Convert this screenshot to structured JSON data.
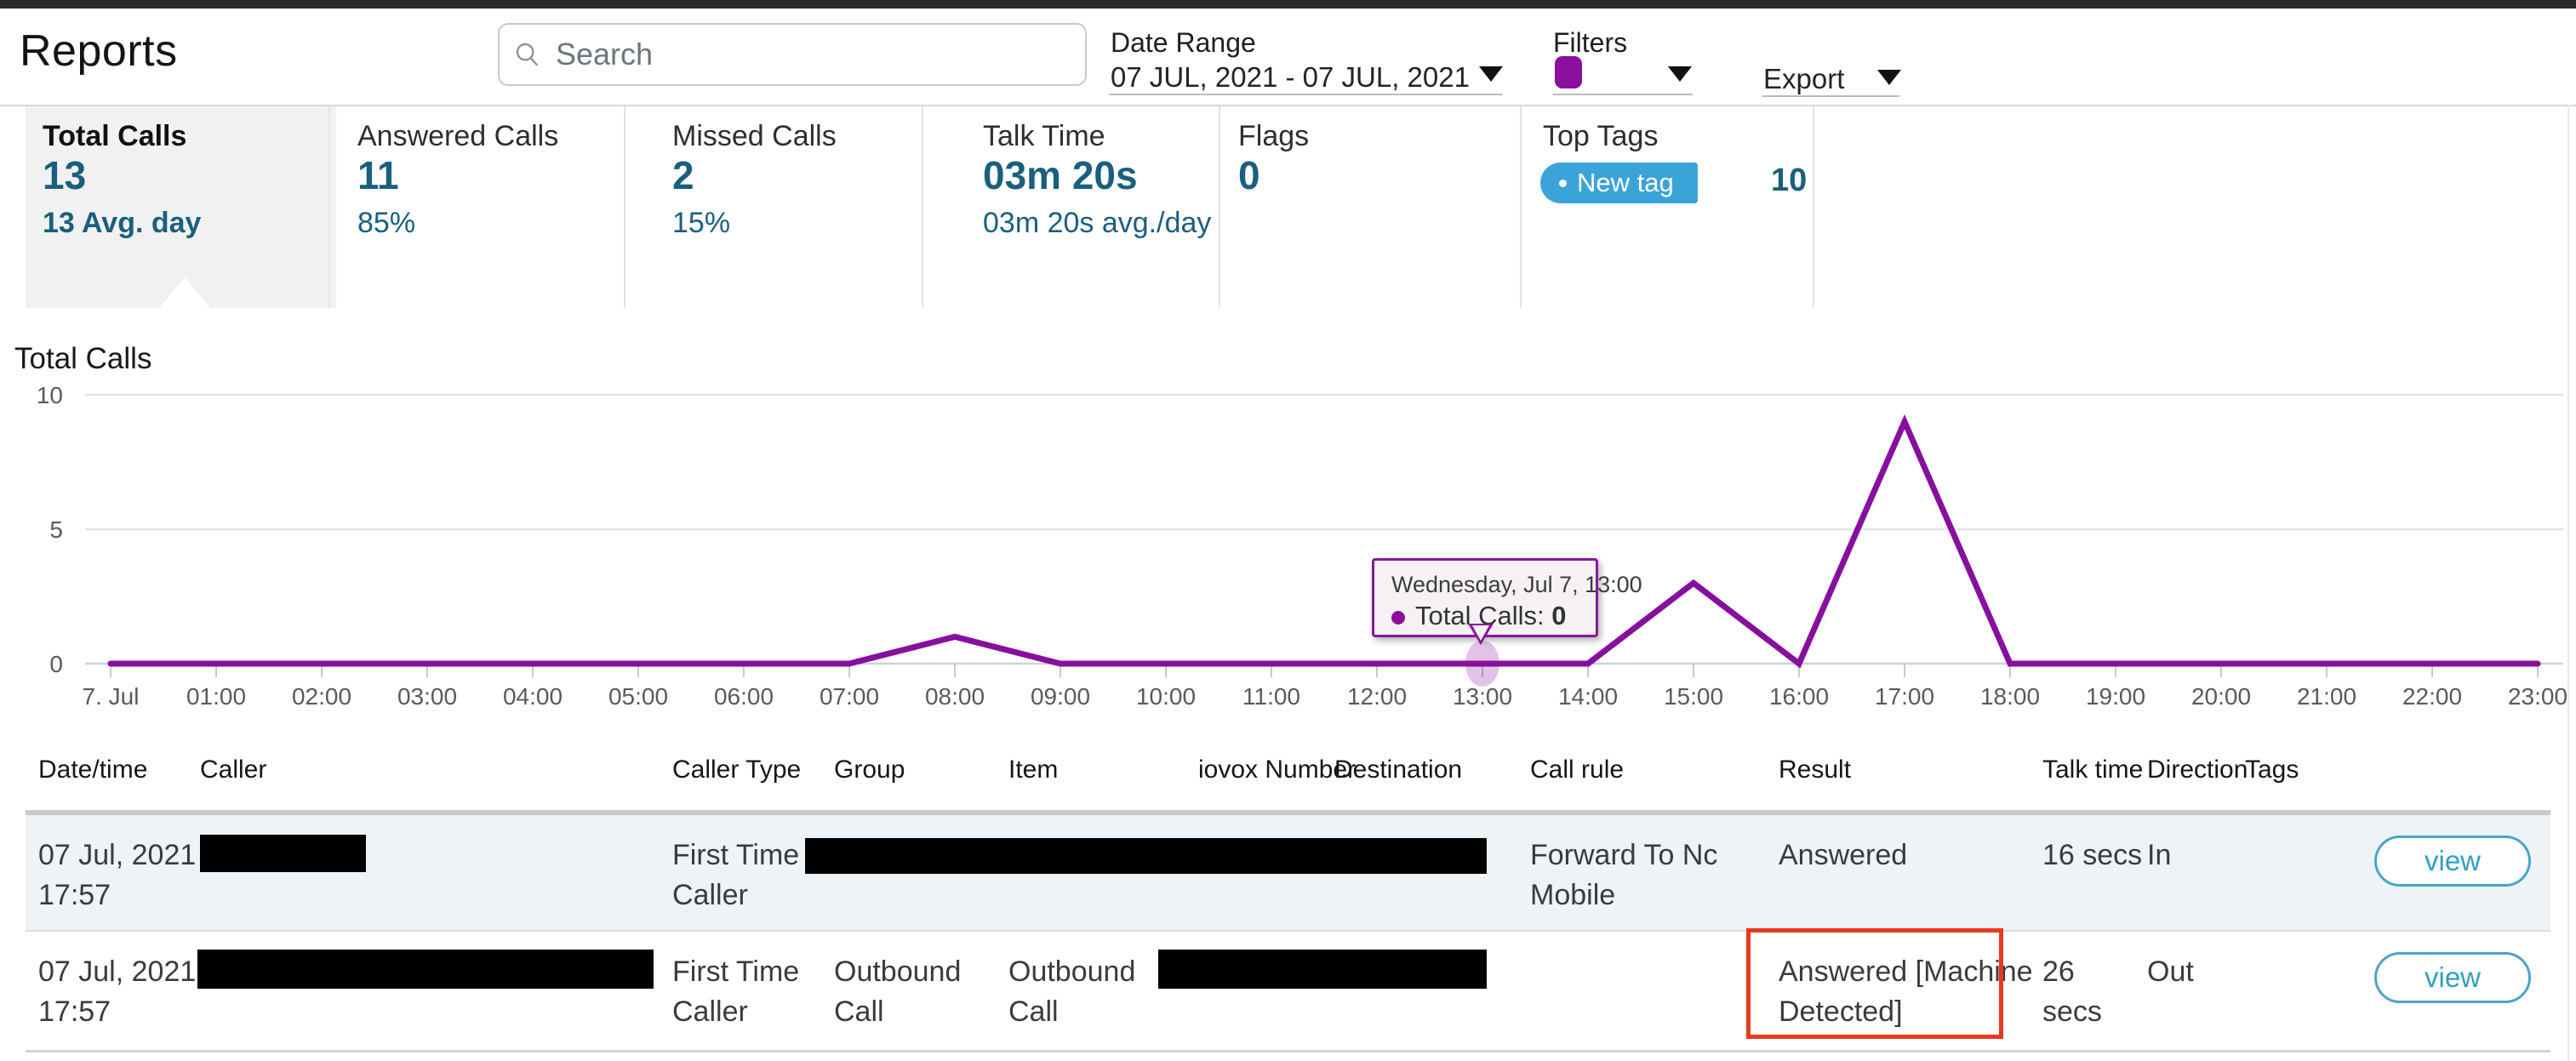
{
  "header": {
    "title": "Reports",
    "search_placeholder": "Search",
    "date_range_label": "Date Range",
    "date_range_value": "07 JUL, 2021 - 07 JUL, 2021",
    "filters_label": "Filters",
    "filter_swatch_color": "#8a0f9e",
    "export_label": "Export"
  },
  "stats": {
    "cards": [
      {
        "label": "Total Calls",
        "value": "13",
        "sub": "13 Avg. day",
        "selected": true
      },
      {
        "label": "Answered Calls",
        "value": "11",
        "sub": "85%"
      },
      {
        "label": "Missed Calls",
        "value": "2",
        "sub": "15%"
      },
      {
        "label": "Talk Time",
        "value": "03m 20s",
        "sub": "03m 20s avg./day"
      },
      {
        "label": "Flags",
        "value": "0",
        "sub": ""
      }
    ],
    "top_tags": {
      "label": "Top Tags",
      "tag_label": "New tag",
      "count": "10",
      "tag_color": "#3aa4d9"
    }
  },
  "chart_data": {
    "type": "line",
    "title": "Total Calls",
    "series_name": "Total Calls",
    "x": [
      "7. Jul",
      "01:00",
      "02:00",
      "03:00",
      "04:00",
      "05:00",
      "06:00",
      "07:00",
      "08:00",
      "09:00",
      "10:00",
      "11:00",
      "12:00",
      "13:00",
      "14:00",
      "15:00",
      "16:00",
      "17:00",
      "18:00",
      "19:00",
      "20:00",
      "21:00",
      "22:00",
      "23:00"
    ],
    "values": [
      0,
      0,
      0,
      0,
      0,
      0,
      0,
      0,
      1,
      0,
      0,
      0,
      0,
      0,
      0,
      3,
      0,
      9,
      0,
      0,
      0,
      0,
      0,
      0
    ],
    "yticks": [
      0,
      5,
      10
    ],
    "ylim": [
      0,
      10
    ],
    "xlabel": "",
    "ylabel": "",
    "grid": true,
    "legend": false,
    "line_color": "#870f9f",
    "highlight_index": 13
  },
  "tooltip": {
    "title": "Wednesday, Jul 7, 13:00",
    "series_label": "Total Calls:",
    "value": "0"
  },
  "table": {
    "columns": [
      "Date/time",
      "Caller",
      "Caller Type",
      "Group",
      "Item",
      "iovox Number",
      "Destination",
      "Call rule",
      "Result",
      "Talk time",
      "Direction",
      "Tags"
    ],
    "rows": [
      {
        "date_l1": "07 Jul, 2021",
        "date_l2": "17:57",
        "caller": "",
        "caller_type_l1": "First Time",
        "caller_type_l2": "Caller",
        "group_l1": "",
        "group_l2": "",
        "item_l1": "",
        "item_l2": "",
        "iovox": "",
        "destination": "",
        "call_rule_l1": "Forward To Nc",
        "call_rule_l2": "Mobile",
        "result_l1": "Answered",
        "result_l2": "",
        "talk_l1": "16 secs",
        "talk_l2": "",
        "direction": "In",
        "tags": "",
        "view_label": "view"
      },
      {
        "date_l1": "07 Jul, 2021",
        "date_l2": "17:57",
        "caller": "",
        "caller_type_l1": "First Time",
        "caller_type_l2": "Caller",
        "group_l1": "Outbound",
        "group_l2": "Call",
        "item_l1": "Outbound",
        "item_l2": "Call",
        "iovox": "",
        "destination": "",
        "call_rule_l1": "",
        "call_rule_l2": "",
        "result_l1": "Answered [Machine",
        "result_l2": "Detected]",
        "talk_l1": "26",
        "talk_l2": "secs",
        "direction": "Out",
        "tags": "",
        "view_label": "view"
      }
    ]
  },
  "colors": {
    "accent_purple": "#870f9f",
    "stat_teal": "#1a5f7e",
    "tag_blue": "#3aa4d9",
    "view_button_teal": "#49a6c5",
    "highlight_red": "#e8391d",
    "row_alt_bg": "#edf3f6"
  }
}
